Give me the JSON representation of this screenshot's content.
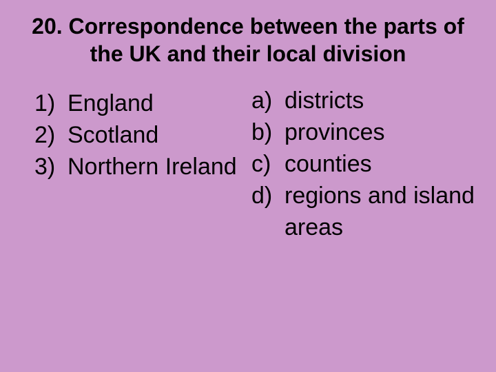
{
  "background_color": "#cc99cc",
  "text_color": "#000000",
  "title_fontsize": 32,
  "item_fontsize": 34,
  "font_family": "Arial",
  "title": "20. Correspondence between the parts of the UK and their local division",
  "left_items": [
    {
      "marker": "1)",
      "text": "England"
    },
    {
      "marker": "2)",
      "text": "Scotland"
    },
    {
      "marker": "3)",
      "text": "Northern Ireland"
    }
  ],
  "right_items": [
    {
      "marker": "a)",
      "text": "districts"
    },
    {
      "marker": "b)",
      "text": "provinces"
    },
    {
      "marker": "c)",
      "text": "counties"
    },
    {
      "marker": "d)",
      "text": "regions and island areas"
    }
  ]
}
